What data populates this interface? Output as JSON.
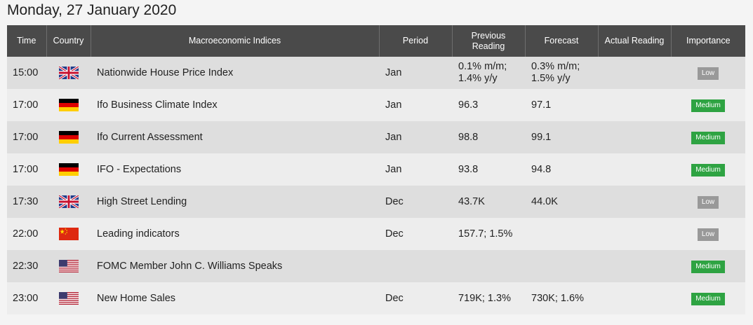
{
  "page": {
    "date_heading": "Monday, 27 January 2020"
  },
  "table": {
    "headers": {
      "time": "Time",
      "country": "Country",
      "indices": "Macroeconomic Indices",
      "period": "Period",
      "previous": "Previous Reading",
      "forecast": "Forecast",
      "actual": "Actual Reading",
      "importance": "Importance"
    },
    "rows": [
      {
        "time": "15:00",
        "country_icon": "uk-flag-icon",
        "index": "Nationwide House Price Index",
        "period": "Jan",
        "previous": "0.1% m/m; 1.4% y/y",
        "forecast": "0.3% m/m; 1.5% y/y",
        "actual": "",
        "importance": "Low"
      },
      {
        "time": "17:00",
        "country_icon": "germany-flag-icon",
        "index": "Ifo Business Climate Index",
        "period": "Jan",
        "previous": "96.3",
        "forecast": "97.1",
        "actual": "",
        "importance": "Medium"
      },
      {
        "time": "17:00",
        "country_icon": "germany-flag-icon",
        "index": "Ifo Current Assessment",
        "period": "Jan",
        "previous": "98.8",
        "forecast": "99.1",
        "actual": "",
        "importance": "Medium"
      },
      {
        "time": "17:00",
        "country_icon": "germany-flag-icon",
        "index": "IFO - Expectations",
        "period": "Jan",
        "previous": "93.8",
        "forecast": "94.8",
        "actual": "",
        "importance": "Medium"
      },
      {
        "time": "17:30",
        "country_icon": "uk-flag-icon",
        "index": "High Street Lending",
        "period": "Dec",
        "previous": "43.7K",
        "forecast": "44.0K",
        "actual": "",
        "importance": "Low"
      },
      {
        "time": "22:00",
        "country_icon": "china-flag-icon",
        "index": "Leading indicators",
        "period": "Dec",
        "previous": "157.7; 1.5%",
        "forecast": "",
        "actual": "",
        "importance": "Low"
      },
      {
        "time": "22:30",
        "country_icon": "usa-flag-icon",
        "index": "FOMC Member John C. Williams Speaks",
        "period": "",
        "previous": "",
        "forecast": "",
        "actual": "",
        "importance": "Medium"
      },
      {
        "time": "23:00",
        "country_icon": "usa-flag-icon",
        "index": "New Home Sales",
        "period": "Dec",
        "previous": "719K; 1.3%",
        "forecast": "730K; 1.6%",
        "actual": "",
        "importance": "Medium"
      }
    ]
  },
  "colors": {
    "header_bg": "#4a4a4a",
    "row_odd": "#dedede",
    "row_even": "#ededed",
    "importance_low": "#999999",
    "importance_medium": "#2ea342"
  }
}
